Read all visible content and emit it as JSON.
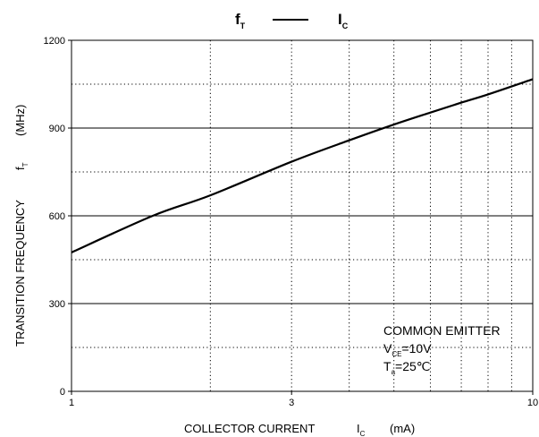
{
  "chart_data": {
    "type": "line",
    "title": {
      "main_1": "f",
      "sub_1": "T",
      "main_2": "I",
      "sub_2": "C"
    },
    "xlabel": {
      "text": "COLLECTOR CURRENT",
      "symbol": "I",
      "symbol_sub": "C",
      "unit": "(mA)"
    },
    "ylabel": {
      "text": "TRANSITION FREQUENCY",
      "symbol": "f",
      "symbol_sub": "T",
      "unit": "(MHz)"
    },
    "x_scale": "log",
    "xlim": [
      1,
      10
    ],
    "ylim": [
      0,
      1200
    ],
    "x_tick_labels": [
      "1",
      "3",
      "10"
    ],
    "y_tick_labels": [
      "0",
      "300",
      "600",
      "900",
      "1200"
    ],
    "grid": "solid at y-ticks, dotted at log minors and y midpoints",
    "series": [
      {
        "x": [
          1,
          1.5,
          2,
          3,
          4,
          5,
          6,
          7,
          8,
          10
        ],
        "y": [
          475,
          600,
          670,
          785,
          858,
          912,
          953,
          987,
          1015,
          1067
        ]
      }
    ],
    "annotations": {
      "line1": "COMMON EMITTER",
      "line2_main": "V",
      "line2_sub": "CE",
      "line2_rest": "=10V",
      "line3_main": "T",
      "line3_sub": "a",
      "line3_rest": "=25℃"
    }
  },
  "colors": {
    "line": "#000000",
    "grid": "#000000",
    "background": "#ffffff"
  }
}
